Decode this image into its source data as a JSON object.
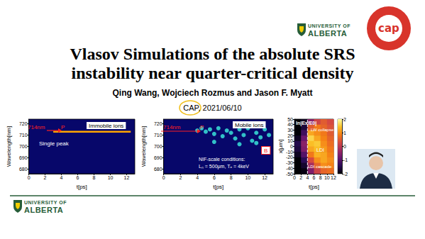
{
  "header": {
    "logo": [
      "UNIVERSITY OF",
      "ALBERTA"
    ],
    "badge": "cap",
    "title": [
      "Vlasov Simulations of the absolute SRS",
      "instability near quarter-critical density"
    ],
    "authors": "Qing Wang, Wojciech Rozmus and Jason F. Myatt",
    "event": "CAP, 2021/06/10"
  },
  "footer": {
    "logo": [
      "UNIVERSITY OF",
      "ALBERTA"
    ]
  },
  "chart_data": [
    {
      "type": "line",
      "x": [
        3,
        12.5
      ],
      "values": [
        713,
        713
      ],
      "color": "#ffa500",
      "xlim": [
        0,
        13
      ],
      "xticks": [
        0,
        2,
        4,
        6,
        8,
        10,
        12
      ],
      "ylim": [
        676,
        724
      ],
      "yticks": [
        680,
        690,
        700,
        710,
        720
      ],
      "x_label": "t[ps]",
      "y_label": "Wavelength[nm]",
      "annotations": [
        "Immobile ions",
        "714nm",
        "P",
        "Single peak"
      ]
    },
    {
      "type": "scatter",
      "x": [
        4,
        4.5,
        5,
        5.5,
        6,
        6,
        6.5,
        7,
        7.5,
        8,
        8.5,
        9,
        9,
        9.5,
        10,
        10.5,
        11,
        11,
        11.5,
        12,
        12.5
      ],
      "values": [
        714,
        716,
        713,
        715,
        711,
        704,
        716,
        709,
        714,
        712,
        707,
        715,
        702,
        710,
        716,
        705,
        712,
        703,
        708,
        715,
        710
      ],
      "color": "#3cf0e0",
      "xlim": [
        0,
        13
      ],
      "xticks": [
        0,
        2,
        4,
        6,
        8,
        10,
        12
      ],
      "ylim": [
        676,
        724
      ],
      "yticks": [
        680,
        690,
        700,
        710,
        720
      ],
      "x_label": "t[ps]",
      "y_label": "Wavelength[nm]",
      "annotations": [
        "Mobile ions",
        "714nm",
        "P",
        "B",
        "NIF-scale conditions:",
        "Lₙ = 500μm, Tₑ = 4keV"
      ]
    },
    {
      "type": "heatmap",
      "x": [
        1,
        3,
        5,
        7,
        9,
        11
      ],
      "y": [
        45,
        35,
        25,
        15,
        5,
        -5,
        -15,
        -25,
        -35,
        -45
      ],
      "cells": [
        [
          -2,
          -1.8,
          -0.5,
          0.2,
          0.5,
          0.3
        ],
        [
          -2,
          -1.6,
          0.5,
          0.8,
          0.6,
          0.4
        ],
        [
          -2,
          -1.2,
          1.2,
          1.0,
          0.8,
          0.5
        ],
        [
          -1.8,
          -0.8,
          1.6,
          1.2,
          0.9,
          0.6
        ],
        [
          -1.5,
          -0.5,
          1.4,
          1.5,
          1.0,
          0.7
        ],
        [
          -1.6,
          -0.6,
          1.2,
          1.4,
          1.1,
          0.8
        ],
        [
          -1.8,
          -1.0,
          0.8,
          1.3,
          1.2,
          0.9
        ],
        [
          -2,
          -1.4,
          0.3,
          1.0,
          1.2,
          1.0
        ],
        [
          -2,
          -1.7,
          -0.2,
          0.6,
          1.0,
          0.9
        ],
        [
          -2,
          -1.9,
          -0.6,
          0.2,
          0.6,
          0.7
        ]
      ],
      "xlim": [
        0,
        12
      ],
      "xticks": [
        0,
        2,
        4,
        6,
        8,
        10,
        12
      ],
      "ylim": [
        -50,
        50
      ],
      "yticks": [
        -50,
        -40,
        -30,
        -20,
        -10,
        0,
        10,
        20,
        30,
        40,
        50
      ],
      "x_label": "t[ps]",
      "y_label": "x[μm]",
      "vline": 4,
      "colorbar": {
        "range": [
          -2,
          2
        ],
        "ticks": [
          -2,
          -1,
          0,
          1,
          2
        ]
      },
      "annotations": [
        "ln|Ex/E0|",
        "LW collapse",
        "LDI",
        "LDI cascade"
      ]
    }
  ]
}
